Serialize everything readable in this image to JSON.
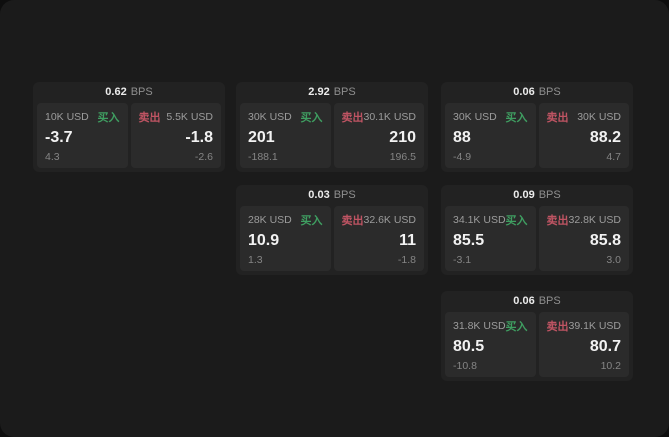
{
  "labels": {
    "buy": "买入",
    "sell": "卖出",
    "bps": "BPS"
  },
  "colors": {
    "buy": "#3f9e61",
    "sell": "#bf5463",
    "page_bg": "#1b1b1b",
    "card_bg": "#222222",
    "panel_bg": "#2b2b2b"
  },
  "cards": [
    {
      "bps": "0.62",
      "buy": {
        "size": "10K USD",
        "value": "-3.7",
        "change": "4.3"
      },
      "sell": {
        "size": "5.5K USD",
        "value": "-1.8",
        "change": "-2.6"
      }
    },
    {
      "bps": "2.92",
      "buy": {
        "size": "30K USD",
        "value": "201",
        "change": "-188.1"
      },
      "sell": {
        "size": "30.1K USD",
        "value": "210",
        "change": "196.5"
      }
    },
    {
      "bps": "0.06",
      "buy": {
        "size": "30K USD",
        "value": "88",
        "change": "-4.9"
      },
      "sell": {
        "size": "30K USD",
        "value": "88.2",
        "change": "4.7"
      }
    },
    {
      "bps": "0.03",
      "buy": {
        "size": "28K USD",
        "value": "10.9",
        "change": "1.3"
      },
      "sell": {
        "size": "32.6K USD",
        "value": "11",
        "change": "-1.8"
      }
    },
    {
      "bps": "0.09",
      "buy": {
        "size": "34.1K USD",
        "value": "85.5",
        "change": "-3.1"
      },
      "sell": {
        "size": "32.8K USD",
        "value": "85.8",
        "change": "3.0"
      }
    },
    {
      "bps": "0.06",
      "buy": {
        "size": "31.8K USD",
        "value": "80.5",
        "change": "-10.8"
      },
      "sell": {
        "size": "39.1K USD",
        "value": "80.7",
        "change": "10.2"
      }
    }
  ]
}
